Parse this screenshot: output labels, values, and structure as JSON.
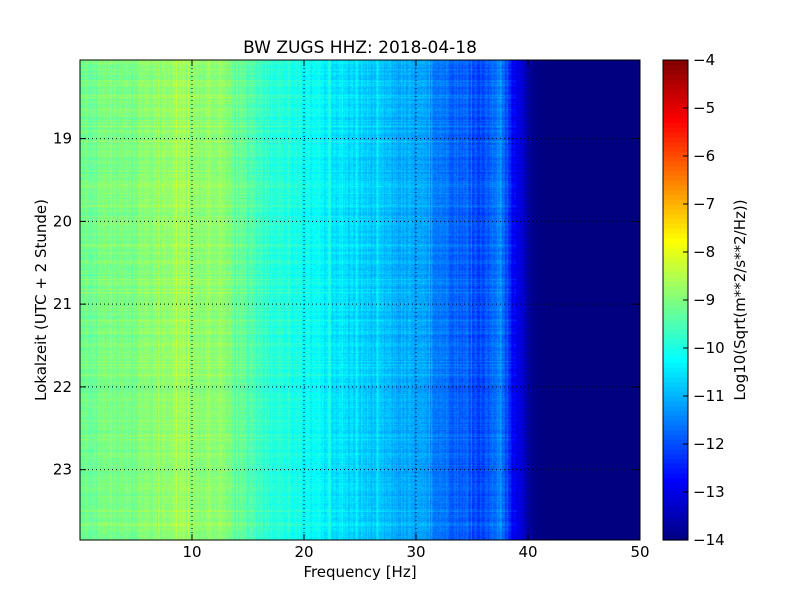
{
  "chart_data": {
    "type": "heatmap",
    "title": "BW ZUGS HHZ: 2018-04-18",
    "xlabel": "Frequency [Hz]",
    "ylabel": "Lokalzeit (UTC + 2 Stunde)",
    "xlim": [
      0,
      50
    ],
    "ylim": [
      18.05,
      23.85
    ],
    "y_inverted": true,
    "x_ticks": [
      10,
      20,
      30,
      40,
      50
    ],
    "y_ticks": [
      19,
      20,
      21,
      22,
      23
    ],
    "grid": true,
    "colormap": "jet",
    "colorbar": {
      "label": "Log10(Sqrt(m**2/s**2/Hz))",
      "min": -14,
      "max": -4,
      "ticks": [
        -4,
        -5,
        -6,
        -7,
        -8,
        -9,
        -10,
        -11,
        -12,
        -13,
        -14
      ]
    },
    "frequency_profile": {
      "frequency_hz": [
        0,
        2,
        5,
        7.5,
        9,
        10.5,
        12.5,
        14,
        16,
        18,
        20,
        22,
        24,
        26,
        28,
        30,
        32,
        34,
        36,
        37.5,
        38.5,
        39.5,
        40.5,
        42,
        50
      ],
      "log_amplitude": [
        -9.2,
        -9.1,
        -9.0,
        -8.8,
        -8.7,
        -8.9,
        -8.8,
        -9.3,
        -9.6,
        -9.9,
        -10.2,
        -10.4,
        -10.6,
        -10.8,
        -11.0,
        -11.2,
        -11.5,
        -11.8,
        -12.1,
        -11.4,
        -12.6,
        -13.2,
        -13.9,
        -14.0,
        -14.0
      ]
    }
  }
}
